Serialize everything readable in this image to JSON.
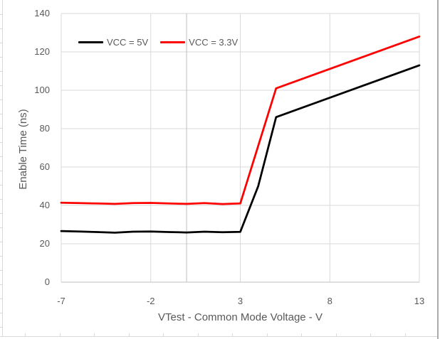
{
  "colors": {
    "background": "#FFFFFF",
    "gridline": "#D9D9D9",
    "axis_line": "#BFBFBF",
    "tick_text": "#595959",
    "title_text": "#595959",
    "worksheet_edge": "#D9D9D9",
    "right_window_edge": "#ABABAB",
    "series_black": "#000000",
    "series_red": "#FF0000"
  },
  "chart_data": {
    "type": "line",
    "title": "",
    "xlabel": "VTest - Common Mode Voltage - V",
    "ylabel": "Enable Time (ns)",
    "xlim": [
      -7,
      13
    ],
    "ylim": [
      0,
      140
    ],
    "x_ticks": [
      -7,
      -2,
      3,
      8,
      13
    ],
    "y_ticks": [
      0,
      20,
      40,
      60,
      80,
      100,
      120,
      140
    ],
    "grid": true,
    "value_axis_cross_x": 0,
    "legend_position": "top-left-inside",
    "series": [
      {
        "name": "VCC = 5V",
        "color": "#000000",
        "points": [
          [
            -7,
            26.6
          ],
          [
            -6,
            26.4
          ],
          [
            -5,
            26.1
          ],
          [
            -4,
            25.8
          ],
          [
            -3,
            26.3
          ],
          [
            -2,
            26.4
          ],
          [
            -1,
            26.1
          ],
          [
            0,
            25.9
          ],
          [
            1,
            26.3
          ],
          [
            2,
            26.0
          ],
          [
            3,
            26.2
          ],
          [
            4,
            50
          ],
          [
            5,
            86
          ],
          [
            13,
            113
          ]
        ]
      },
      {
        "name": "VCC = 3.3V",
        "color": "#FF0000",
        "points": [
          [
            -7,
            41.4
          ],
          [
            -6,
            41.2
          ],
          [
            -5,
            41.0
          ],
          [
            -4,
            40.8
          ],
          [
            -3,
            41.2
          ],
          [
            -2,
            41.3
          ],
          [
            -1,
            41.0
          ],
          [
            0,
            40.8
          ],
          [
            1,
            41.2
          ],
          [
            2,
            40.7
          ],
          [
            3,
            41.0
          ],
          [
            4,
            71
          ],
          [
            5,
            101
          ],
          [
            13,
            128
          ]
        ]
      }
    ]
  }
}
